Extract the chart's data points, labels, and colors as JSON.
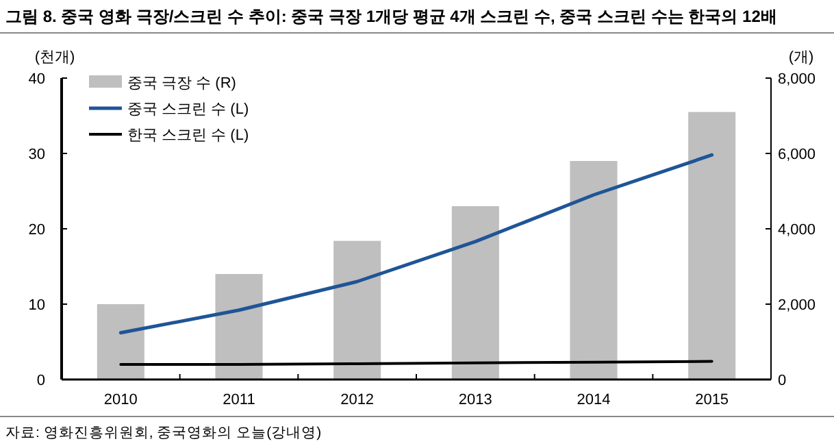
{
  "chart_data": {
    "type": "bar",
    "title": "그림 8. 중국 영화 극장/스크린 수 추이: 중국 극장 1개당 평균 4개 스크린 수, 중국 스크린 수는 한국의 12배",
    "ylabel": "(천개)",
    "y2label": "(개)",
    "categories": [
      "2010",
      "2011",
      "2012",
      "2013",
      "2014",
      "2015"
    ],
    "series": [
      {
        "name": "중국 극장 수 (R)",
        "axis": "y2",
        "color": "#bfbfbf",
        "values": [
          2000,
          2800,
          3680,
          4600,
          5800,
          7100
        ]
      },
      {
        "name": "중국 스크린 수 (L)",
        "type": "line",
        "axis": "y",
        "color": "#1f5596",
        "values": [
          6.2,
          9.2,
          13.0,
          18.3,
          24.5,
          29.8
        ]
      },
      {
        "name": "한국 스크린 수 (L)",
        "type": "line",
        "axis": "y",
        "color": "#000000",
        "values": [
          2.0,
          2.0,
          2.1,
          2.2,
          2.3,
          2.4
        ]
      }
    ],
    "ylim": [
      0,
      40
    ],
    "yticks": [
      0,
      10,
      20,
      30,
      40
    ],
    "y2lim": [
      0,
      8000
    ],
    "y2ticks": [
      0,
      {
        "value": 2000,
        "label": "2,000"
      },
      {
        "value": 4000,
        "label": "4,000"
      },
      {
        "value": 6000,
        "label": "6,000"
      },
      {
        "value": 8000,
        "label": "8,000"
      }
    ],
    "legend": "top left",
    "grid": false,
    "annotations": [
      "자료: 영화진흥위원회, 중국영화의 오늘(강내영)"
    ]
  }
}
